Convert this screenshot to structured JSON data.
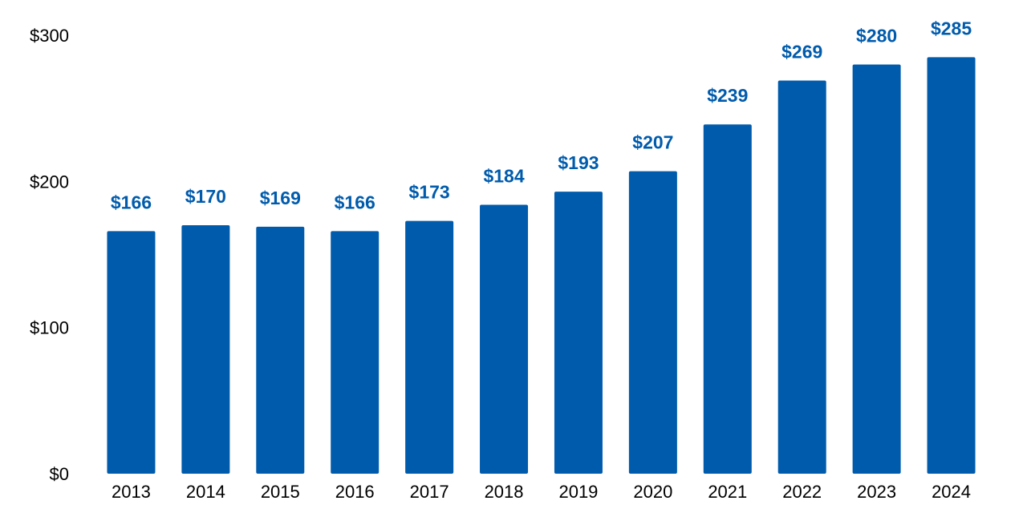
{
  "chart_data": {
    "type": "bar",
    "categories": [
      "2013",
      "2014",
      "2015",
      "2016",
      "2017",
      "2018",
      "2019",
      "2020",
      "2021",
      "2022",
      "2023",
      "2024"
    ],
    "values": [
      166,
      170,
      169,
      166,
      173,
      184,
      193,
      207,
      239,
      269,
      280,
      285
    ],
    "data_labels": [
      "$166",
      "$170",
      "$169",
      "$166",
      "$173",
      "$184",
      "$193",
      "$207",
      "$239",
      "$269",
      "$280",
      "$285"
    ],
    "y_ticks": [
      0,
      100,
      200,
      300
    ],
    "y_tick_labels": [
      "$0",
      "$100",
      "$200",
      "$300"
    ],
    "ylim": [
      0,
      300
    ],
    "grid": false,
    "legend": "none",
    "title": "",
    "xlabel": "",
    "ylabel": "",
    "bar_color": "#005BAC",
    "label_color": "#005BAC"
  }
}
